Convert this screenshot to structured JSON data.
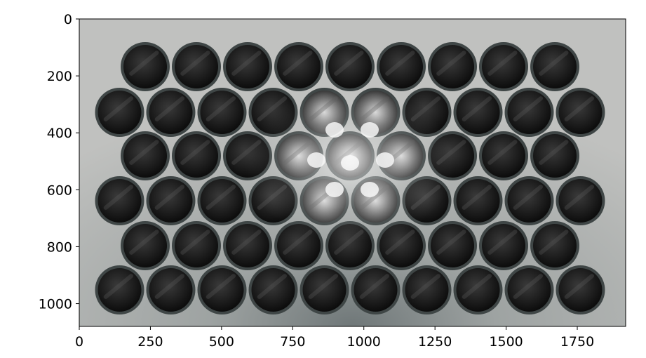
{
  "image": {
    "subject": "rows of black plastic tubes viewed end-on with light through the centre",
    "pipe_rows": [
      {
        "count": 9,
        "offset": "inner"
      },
      {
        "count": 10,
        "offset": "outer"
      },
      {
        "count": 9,
        "offset": "inner"
      },
      {
        "count": 10,
        "offset": "outer"
      },
      {
        "count": 9,
        "offset": "inner"
      },
      {
        "count": 10,
        "offset": "outer"
      }
    ],
    "colors": {
      "background": "#bcbdbb",
      "pipe_rim": "#3f4646",
      "pipe_inner": "#0c0c0c",
      "highlight": "#f5f5f5"
    }
  },
  "axes": {
    "x_ticks": [
      0,
      250,
      500,
      750,
      1000,
      1250,
      1500,
      1750
    ],
    "y_ticks": [
      0,
      200,
      400,
      600,
      800,
      1000
    ],
    "x_range": [
      0,
      1920
    ],
    "y_range": [
      1080,
      0
    ]
  }
}
